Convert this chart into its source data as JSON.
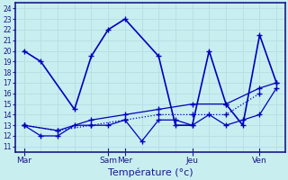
{
  "background_color": "#c8eef0",
  "grid_color": "#b8dfe2",
  "line_color": "#0000bb",
  "marker_color": "#0000bb",
  "xlabel": "Température (°c)",
  "xlabel_fontsize": 8,
  "yticks": [
    11,
    12,
    13,
    14,
    15,
    16,
    17,
    18,
    19,
    20,
    21,
    22,
    23,
    24
  ],
  "ylim": [
    10.5,
    24.5
  ],
  "xtick_labels": [
    "Mar",
    "Sam",
    "Mer",
    "Jeu",
    "Ven"
  ],
  "xtick_positions": [
    0,
    5,
    6,
    10,
    14
  ],
  "xlim": [
    -0.5,
    15.5
  ],
  "series": [
    {
      "x": [
        0,
        1,
        3,
        4,
        5,
        6,
        8,
        9,
        10,
        11,
        12,
        13,
        14,
        15
      ],
      "y": [
        20,
        19,
        14.5,
        19.5,
        22,
        23,
        19.5,
        13,
        13,
        20,
        15,
        13,
        21.5,
        17
      ],
      "style": "-",
      "marker": "+",
      "markersize": 5,
      "linewidth": 1.2
    },
    {
      "x": [
        0,
        1,
        2,
        3,
        4,
        5,
        6,
        7,
        8,
        9,
        10,
        11,
        12,
        13,
        14,
        15
      ],
      "y": [
        13,
        12,
        12,
        13,
        13,
        13,
        13.5,
        11.5,
        13.5,
        13.5,
        13,
        14,
        13,
        13.5,
        14,
        16.5
      ],
      "style": "-",
      "marker": "+",
      "markersize": 4,
      "linewidth": 0.9
    },
    {
      "x": [
        0,
        2,
        4,
        6,
        8,
        10,
        12,
        14
      ],
      "y": [
        13,
        12.5,
        13,
        13.5,
        14,
        14,
        14,
        16
      ],
      "style": ":",
      "marker": "+",
      "markersize": 4,
      "linewidth": 0.9
    },
    {
      "x": [
        0,
        2,
        4,
        6,
        8,
        10,
        12,
        14,
        15
      ],
      "y": [
        13,
        12.5,
        13.5,
        14,
        14.5,
        15,
        15,
        16.5,
        17
      ],
      "style": "-",
      "marker": "+",
      "markersize": 4,
      "linewidth": 0.9
    }
  ]
}
